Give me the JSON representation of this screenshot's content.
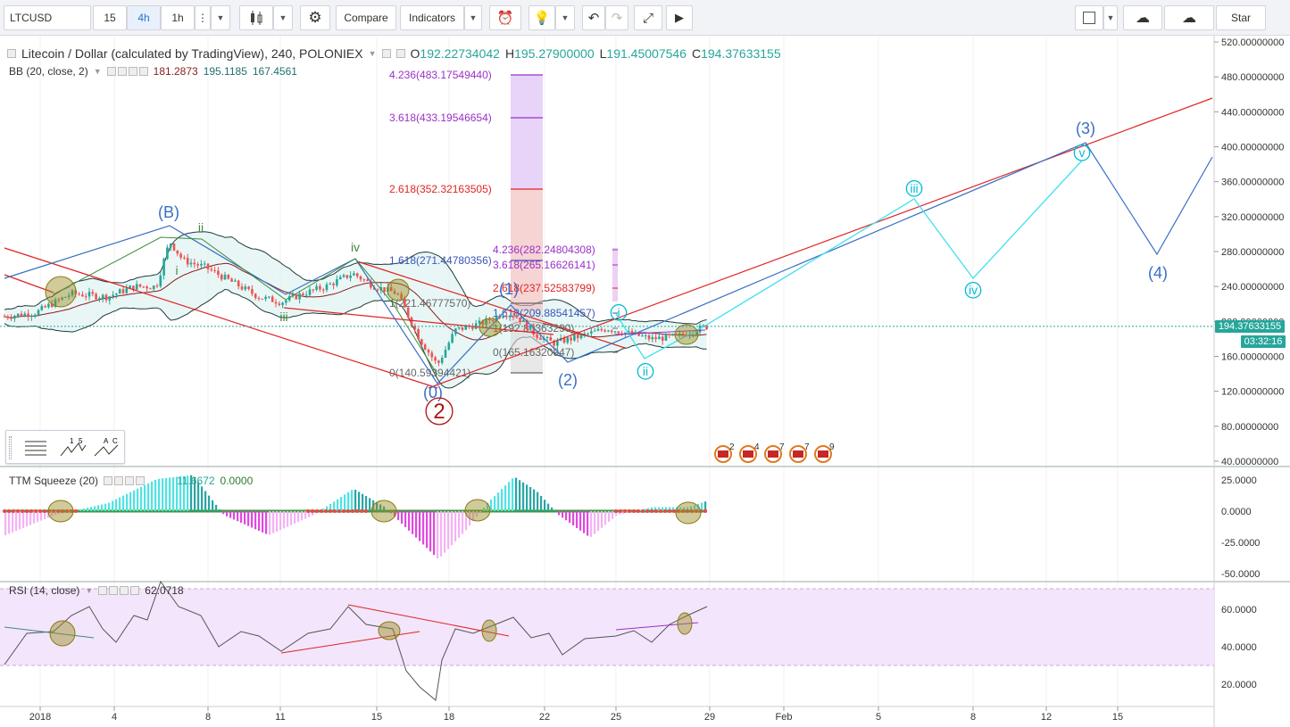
{
  "toolbar": {
    "symbol": "LTCUSD",
    "intervals": [
      "15",
      "4h",
      "1h"
    ],
    "active_interval": "4h",
    "compare_label": "Compare",
    "indicators_label": "Indicators",
    "star_label": "Star"
  },
  "main_pane": {
    "title": "Litecoin / Dollar (calculated by TradingView), 240, POLONIEX",
    "ohlc": {
      "o_label": "O",
      "o": "192.22734042",
      "h_label": "H",
      "h": "195.27900000",
      "l_label": "L",
      "l": "191.45007546",
      "c_label": "C",
      "c": "194.37633155"
    },
    "bb": {
      "label": "BB (20, close, 2)",
      "basis": "181.2873",
      "upper": "195.1185",
      "lower": "167.4561"
    },
    "price_axis": [
      "520.00000000",
      "480.00000000",
      "440.00000000",
      "400.00000000",
      "360.00000000",
      "320.00000000",
      "280.00000000",
      "240.00000000",
      "200.00000000",
      "160.00000000",
      "120.00000000",
      "80.00000000",
      "40.00000000"
    ],
    "last_price": "194.37633155",
    "countdown": "03:32:16",
    "fib_large": [
      "4.236(483.17549440)",
      "3.618(433.19546654)",
      "2.618(352.32163505)",
      "1.618(271.44780356)",
      "1(221.46777570)",
      "0(140.59394421)"
    ],
    "fib_small": [
      "4.236(282.24804308)",
      "3.618(265.16626141)",
      "2.618(237.52583799)",
      "1.618(209.88541457)",
      "1(192.80363290)",
      "0(165.16320947)"
    ],
    "wave_labels": {
      "B": "(B)",
      "ii": "ii",
      "i": "i",
      "iii": "iii",
      "iv": "iv",
      "one": "(1)",
      "two": "(2)",
      "three": "(3)",
      "four": "(4)",
      "zero": "(0)",
      "big2": "2",
      "c_i": "i",
      "c_ii": "ii",
      "c_iii": "iii",
      "c_iv": "iv",
      "c_v": "v"
    },
    "events": [
      "2",
      "4",
      "7",
      "7",
      "9"
    ]
  },
  "ttm": {
    "label": "TTM Squeeze (20)",
    "v1": "11.6672",
    "v2": "0.0000",
    "axis": [
      "25.0000",
      "0.0000",
      "-25.0000",
      "-50.0000"
    ]
  },
  "rsi": {
    "label": "RSI (14, close)",
    "value": "62.0718",
    "axis": [
      "60.0000",
      "40.0000",
      "20.0000"
    ]
  },
  "time_axis": [
    "2018",
    "4",
    "8",
    "11",
    "15",
    "18",
    "22",
    "25",
    "29",
    "Feb",
    "5",
    "8",
    "12",
    "15"
  ],
  "colors": {
    "up": "#26a69a",
    "down": "#ef5350",
    "bb_band": "#000000",
    "bb_basis": "#8b1c1c",
    "rsi_bg": "#f3e5fb",
    "wave_cyan": "#00bcd4",
    "wave_blue": "#3a6fc4",
    "trend_red": "#e02424",
    "accent": "#2a71d0"
  }
}
